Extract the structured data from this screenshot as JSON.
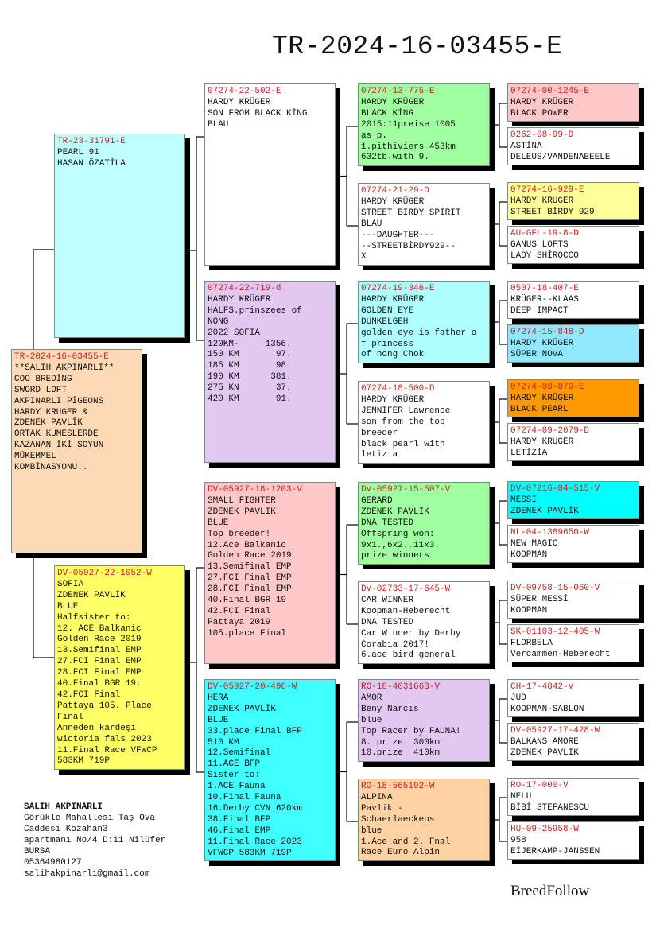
{
  "title": "TR-2024-16-03455-E",
  "subject": {
    "bg": "#fdd9b6",
    "lines": [
      "TR-2024-16-03455-E",
      "**SALİH AKPINARLI**",
      "COO BREDİNG",
      "SWORD LOFT",
      "AKPINARLI PİGEONS",
      "HARDY KRUGER &",
      "ZDENEK PAVLİK",
      "ORTAK KÜMESLERDE",
      "KAZANAN İKİ SOYUN",
      "MÜKEMMEL",
      "KOMBİNASYONU.."
    ]
  },
  "sire": {
    "bg": "#c0ffff",
    "lines": [
      "TR-23-31791-E",
      "PEARL 91",
      "HASAN ÖZATİLA"
    ]
  },
  "dam": {
    "bg": "#ffff66",
    "lines": [
      "DV-05927-22-1052-W",
      "SOFIA",
      "ZDENEK PAVLİK",
      "BLUE",
      "Halfsister to:",
      "12. ACE Balkanic",
      "Golden Race 2019",
      "13.Semifinal EMP",
      "27.FCI Final EMP",
      "28.FCI Final EMP",
      "40.Final BGR 19.",
      "42.FCI Final",
      "Pattaya 105. Place",
      "Final",
      "Anneden kardeşi",
      "wictoria fals 2023",
      "11.Final Race VFWCP",
      "583KM 719P"
    ]
  },
  "gen2": [
    {
      "bg": "#ffffff",
      "lines": [
        "07274-22-502-E",
        "HARDY KRÜGER",
        "SON FROM BLACK KİNG",
        "BLAU"
      ]
    },
    {
      "bg": "#e2c8f0",
      "lines": [
        "07274-22-719-d",
        "HARDY KRÜGER",
        "HALFS.prinszees of",
        "NONG",
        "2022 SOFİA",
        "120KM-     1356.",
        "150 KM       97.",
        "185 KM       98.",
        "190 KM      381.",
        "275 KN       37.",
        "420 KM       91."
      ]
    },
    {
      "bg": "#ffc8c8",
      "lines": [
        "DV-05927-18-1203-V",
        "SMALL FIGHTER",
        "ZDENEK PAVLİK",
        "BLUE",
        "Top breeder!",
        "12.Ace Balkanic",
        "Golden Race 2019",
        "13.Semifinal EMP",
        "27.FCI Final EMP",
        "28.FCI Final EMP",
        "40.Final BGR 19",
        "42.FCI Final",
        "Pattaya 2019",
        "105.place Final"
      ]
    },
    {
      "bg": "#40ffff",
      "lines": [
        "DV-05927-20-496-W",
        "HERA",
        "ZDENEK PAVLİK",
        "BLUE",
        "33.place Final BFP",
        "510 KM",
        "12.Semifinal",
        "11.ACE BFP",
        "Sister to:",
        "1.ACE Fauna",
        "10.Final Fauna",
        "16.Derby CVN 620km",
        "38.Final BFP",
        "46.Final EMP",
        "11.Final Race 2023",
        "VFWCP 583KM 719P"
      ]
    }
  ],
  "gen3": [
    {
      "bg": "#a0ffa0",
      "lines": [
        "07274-13-775-E",
        "HARDY KRÜGER",
        "BLACK KİNG",
        "2015:11preise 1005",
        "as p.",
        "1.pithiviers 453km",
        "632tb.with 9."
      ]
    },
    {
      "bg": "#ffffff",
      "lines": [
        "07274-21-29-D",
        "HARDY KRÜGER",
        "STREET BİRDY SPİRİT",
        "BLAU",
        "---DAUGHTER---",
        "--STREETBİRDY929--",
        "X"
      ]
    },
    {
      "bg": "#b0ffff",
      "lines": [
        "07274-19-346-E",
        "HARDY KRÜGER",
        "GOLDEN EYE",
        "DUNKELGEH",
        "golden eye is father o",
        "f princess",
        "of nong Chok"
      ]
    },
    {
      "bg": "#ffffff",
      "lines": [
        "07274-18-500-D",
        "HARDY KRÜGER",
        "JENNİFER Lawrence",
        "son from the top",
        "breeder",
        "black pearl with",
        "letizia"
      ]
    },
    {
      "bg": "#a0ffa0",
      "lines": [
        "DV-05927-15-507-V",
        "GERARD",
        "ZDENEK PAVLİK",
        "DNA TESTED",
        "Offspring won:",
        "9x1.,6x2.,11x3.",
        "prize winners"
      ]
    },
    {
      "bg": "#ffffff",
      "lines": [
        "DV-02733-17-645-W",
        "CAR WINNER",
        "Koopman-Heberecht",
        "DNA TESTED",
        "Car Winner by Derby",
        "Corabia 2017!",
        "6.ace bird general"
      ]
    },
    {
      "bg": "#e2c8f0",
      "lines": [
        "RO-18-4031663-V",
        "AMOR",
        "Beny Narcis",
        "blue",
        "Top Racer by FAUNA!",
        "8. prize  300km",
        "10.prize  410km"
      ]
    },
    {
      "bg": "#ffd2a4",
      "lines": [
        "RO-18-565192-W",
        "ALPINA",
        "Pavlik -",
        "Schaerlaeckens",
        "blue",
        "1.Ace and 2. Fnal",
        "Race Euro Alpin"
      ]
    }
  ],
  "gen4": [
    {
      "bg": "#ffc8c8",
      "lines": [
        "07274-00-1245-E",
        "HARDY KRÜGER",
        "BLACK POWER"
      ]
    },
    {
      "bg": "#ffffff",
      "lines": [
        "0262-08-99-D",
        "ASTİNA",
        "DELEUS/VANDENABEELE"
      ]
    },
    {
      "bg": "#ffff99",
      "lines": [
        "07274-16-929-E",
        "HARDY KRÜGER",
        "STREET BİRDY 929"
      ]
    },
    {
      "bg": "#ffffff",
      "lines": [
        "AU-GFL-19-8-D",
        "GANUS LOFTS",
        "LADY SHİROCCO"
      ]
    },
    {
      "bg": "#ffffff",
      "lines": [
        "0507-18-407-E",
        "KRÜGER--KLAAS",
        "DEEP IMPACT"
      ]
    },
    {
      "bg": "#90e8ff",
      "lines": [
        "07274-15-848-D",
        "HARDY KRÜGER",
        "SÜPER NOVA"
      ]
    },
    {
      "bg": "#ff9900",
      "lines": [
        "07274-08-879-E",
        "HARDY KRÜGER",
        "BLACK PEARL"
      ]
    },
    {
      "bg": "#ffffff",
      "lines": [
        "07274-09-2079-D",
        "HARDY KRÜGER",
        "LETİZİA"
      ]
    },
    {
      "bg": "#00ffff",
      "lines": [
        "DV-07216-04-515-V",
        "MESSİ",
        "ZDENEK PAVLİK"
      ]
    },
    {
      "bg": "#ffffff",
      "lines": [
        "NL-04-1389650-W",
        "NEW MAGIC",
        "KOOPMAN"
      ]
    },
    {
      "bg": "#ffffff",
      "lines": [
        "DV-09758-15-060-V",
        "SÜPER MESSİ",
        "KOOPMAN"
      ]
    },
    {
      "bg": "#ffffff",
      "lines": [
        "SK-01103-12-405-W",
        "FLORBELA",
        "Vercammen-Heberecht"
      ]
    },
    {
      "bg": "#ffffff",
      "lines": [
        "CH-17-4842-V",
        "JUD",
        "KOOPMAN-SABLON"
      ]
    },
    {
      "bg": "#ffffff",
      "lines": [
        "DV-05927-17-428-W",
        "BALKANS AMORE",
        "ZDENEK PAVLİK"
      ]
    },
    {
      "bg": "#ffffff",
      "lines": [
        "RO-17-000-V",
        "NELU",
        "BİBİ STEFANESCU"
      ]
    },
    {
      "bg": "#ffffff",
      "lines": [
        "HU-09-25958-W",
        "958",
        "EİJERKAMP-JANSSEN"
      ]
    }
  ],
  "owner": {
    "name": "SALİH AKPINARLI",
    "lines": [
      "Görükle Mahallesi Taş Ova",
      "Caddesi Kozahan3",
      "apartmanı No/4 D:11 Nilüfer",
      "BURSA",
      "05364980127",
      "salihakpinarli@gmail.com"
    ]
  },
  "brand": "BreedFollow",
  "colors": {
    "ring": "#cc2020",
    "shadow": "#000000"
  }
}
